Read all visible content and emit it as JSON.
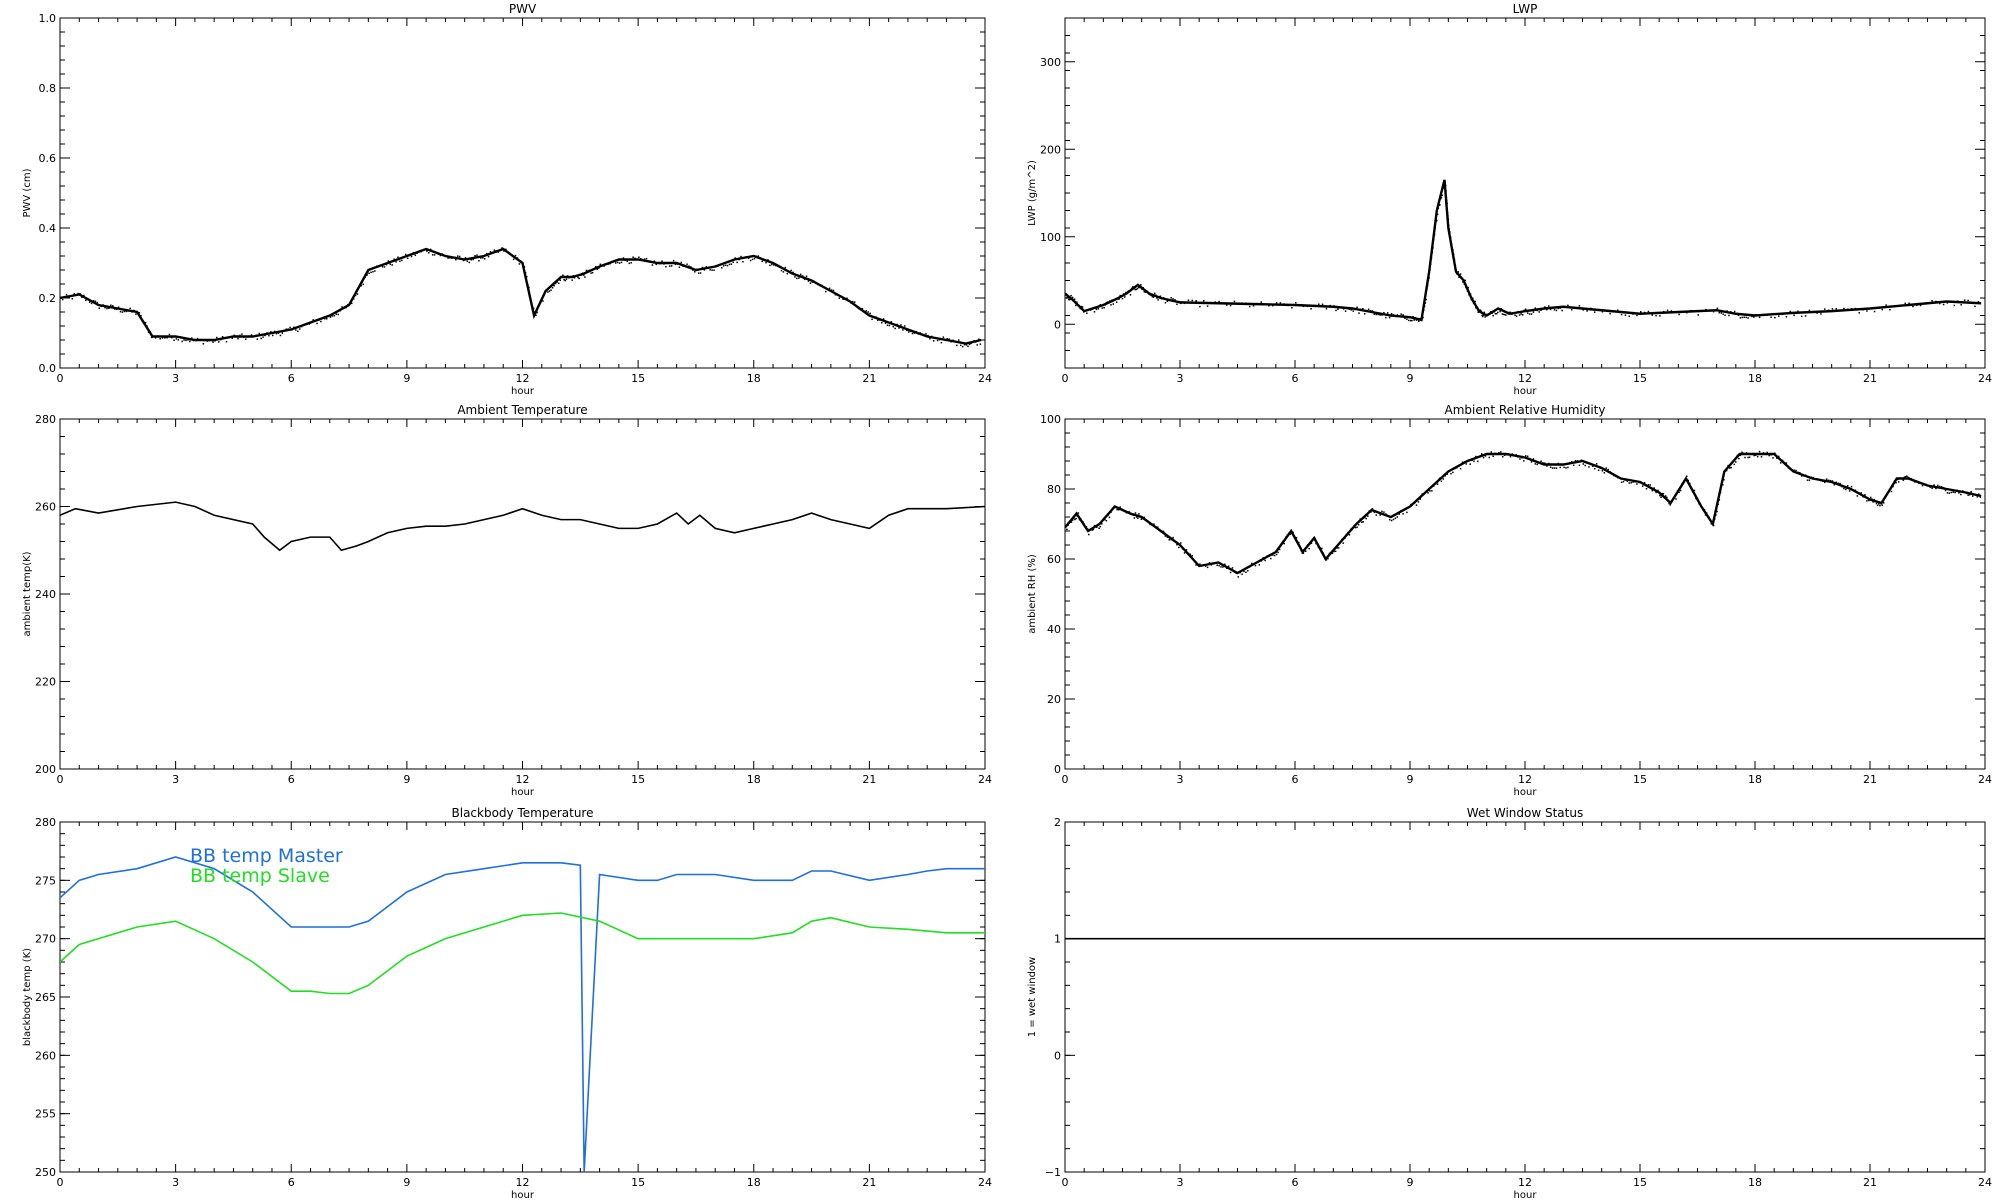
{
  "chart_data": [
    {
      "type": "scatter",
      "title": "PWV",
      "xlabel": "hour",
      "ylabel": "PWV (cm)",
      "xlim": [
        0,
        24
      ],
      "ylim": [
        0,
        1.0
      ],
      "xticks": [
        0,
        3,
        6,
        9,
        12,
        15,
        18,
        21,
        24
      ],
      "yticks": [
        0.0,
        0.2,
        0.4,
        0.6,
        0.8,
        1.0
      ],
      "ytick_labels": [
        "0.0",
        "0.2",
        "0.4",
        "0.6",
        "0.8",
        "1.0"
      ],
      "series": [
        {
          "color": "#000000",
          "style": "dots",
          "x": [
            0,
            0.5,
            1,
            1.5,
            2,
            2.4,
            3,
            3.5,
            4,
            4.5,
            5,
            5.5,
            6,
            6.5,
            7,
            7.5,
            8,
            8.5,
            9,
            9.5,
            10,
            10.5,
            11,
            11.5,
            12,
            12.3,
            12.6,
            13,
            13.3,
            13.6,
            14,
            14.5,
            15,
            15.5,
            16,
            16.5,
            17,
            17.5,
            18,
            18.5,
            19,
            19.5,
            20,
            20.5,
            21,
            21.5,
            22,
            22.5,
            23,
            23.5,
            23.9
          ],
          "y": [
            0.2,
            0.21,
            0.18,
            0.17,
            0.16,
            0.09,
            0.09,
            0.08,
            0.08,
            0.09,
            0.09,
            0.1,
            0.11,
            0.13,
            0.15,
            0.18,
            0.28,
            0.3,
            0.32,
            0.34,
            0.32,
            0.31,
            0.32,
            0.34,
            0.3,
            0.15,
            0.22,
            0.26,
            0.26,
            0.27,
            0.29,
            0.31,
            0.31,
            0.3,
            0.3,
            0.28,
            0.29,
            0.31,
            0.32,
            0.3,
            0.27,
            0.25,
            0.22,
            0.19,
            0.15,
            0.13,
            0.11,
            0.09,
            0.08,
            0.07,
            0.08
          ]
        }
      ]
    },
    {
      "type": "scatter",
      "title": "LWP",
      "xlabel": "hour",
      "ylabel": "LWP (g/m^2)",
      "xlim": [
        0,
        24
      ],
      "ylim": [
        -50,
        350
      ],
      "xticks": [
        0,
        3,
        6,
        9,
        12,
        15,
        18,
        21,
        24
      ],
      "yticks": [
        0,
        100,
        200,
        300
      ],
      "ytick_labels": [
        "0",
        "100",
        "200",
        "300"
      ],
      "series": [
        {
          "color": "#000000",
          "style": "dots",
          "x": [
            0,
            0.2,
            0.5,
            1,
            1.3,
            1.6,
            1.9,
            2.2,
            2.5,
            3,
            4,
            5,
            6,
            7,
            7.5,
            8,
            8.5,
            9,
            9.3,
            9.5,
            9.7,
            9.9,
            10,
            10.2,
            10.4,
            10.6,
            10.8,
            11,
            11.3,
            11.6,
            12,
            12.5,
            13,
            14,
            15,
            16,
            17,
            17.5,
            18,
            19,
            20,
            21,
            22,
            23,
            23.9
          ],
          "y": [
            35,
            28,
            15,
            22,
            28,
            35,
            45,
            35,
            30,
            25,
            24,
            23,
            22,
            20,
            18,
            14,
            10,
            8,
            5,
            60,
            130,
            165,
            110,
            60,
            50,
            30,
            15,
            10,
            18,
            12,
            15,
            18,
            20,
            16,
            12,
            14,
            16,
            12,
            10,
            13,
            15,
            18,
            22,
            26,
            24
          ]
        }
      ]
    },
    {
      "type": "line",
      "title": "Ambient Temperature",
      "xlabel": "hour",
      "ylabel": "ambient temp(K)",
      "xlim": [
        0,
        24
      ],
      "ylim": [
        200,
        280
      ],
      "xticks": [
        0,
        3,
        6,
        9,
        12,
        15,
        18,
        21,
        24
      ],
      "yticks": [
        200,
        220,
        240,
        260,
        280
      ],
      "ytick_labels": [
        "200",
        "220",
        "240",
        "260",
        "280"
      ],
      "series": [
        {
          "color": "#000000",
          "x": [
            0,
            0.4,
            1,
            2,
            3,
            3.5,
            4,
            5,
            5.3,
            5.7,
            6,
            6.5,
            7,
            7.3,
            7.7,
            8,
            8.5,
            9,
            9.5,
            10,
            10.5,
            11,
            11.5,
            12,
            12.5,
            13,
            13.5,
            14,
            14.5,
            15,
            15.5,
            16,
            16.3,
            16.6,
            17,
            17.5,
            18,
            18.5,
            19,
            19.5,
            20,
            20.5,
            21,
            21.5,
            22,
            23,
            24
          ],
          "y": [
            258,
            259.5,
            258.5,
            260,
            261,
            260,
            258,
            256,
            253,
            250,
            252,
            253,
            253,
            250,
            251,
            252,
            254,
            255,
            255.5,
            255.5,
            256,
            257,
            258,
            259.5,
            258,
            257,
            257,
            256,
            255,
            255,
            256,
            258.5,
            256,
            258,
            255,
            254,
            255,
            256,
            257,
            258.5,
            257,
            256,
            255,
            258,
            259.5,
            259.5,
            260
          ]
        }
      ]
    },
    {
      "type": "scatter",
      "title": "Ambient Relative Humidity",
      "xlabel": "hour",
      "ylabel": "ambient RH (%)",
      "xlim": [
        0,
        24
      ],
      "ylim": [
        0,
        100
      ],
      "xticks": [
        0,
        3,
        6,
        9,
        12,
        15,
        18,
        21,
        24
      ],
      "yticks": [
        0,
        20,
        40,
        60,
        80,
        100
      ],
      "ytick_labels": [
        "0",
        "20",
        "40",
        "60",
        "80",
        "100"
      ],
      "series": [
        {
          "color": "#000000",
          "style": "dots",
          "x": [
            0,
            0.3,
            0.6,
            0.9,
            1.3,
            1.7,
            2,
            2.5,
            3,
            3.5,
            4,
            4.5,
            5,
            5.5,
            5.9,
            6.2,
            6.5,
            6.8,
            7.2,
            7.6,
            8,
            8.5,
            9,
            9.5,
            10,
            10.5,
            11,
            11.5,
            12,
            12.5,
            13,
            13.5,
            14,
            14.5,
            15,
            15.5,
            15.8,
            16.2,
            16.6,
            16.9,
            17.2,
            17.6,
            18,
            18.5,
            19,
            19.5,
            20,
            20.5,
            21,
            21.3,
            21.7,
            22,
            22.5,
            23,
            23.5,
            23.9
          ],
          "y": [
            69,
            73,
            68,
            70,
            75,
            73,
            72,
            68,
            64,
            58,
            59,
            56,
            59,
            62,
            68,
            62,
            66,
            60,
            65,
            70,
            74,
            72,
            75,
            80,
            85,
            88,
            90,
            90,
            89,
            87,
            87,
            88,
            86,
            83,
            82,
            79,
            76,
            83,
            75,
            70,
            85,
            90,
            90,
            90,
            85,
            83,
            82,
            80,
            77,
            76,
            83,
            83,
            81,
            80,
            79,
            78
          ]
        }
      ]
    },
    {
      "type": "line",
      "title": "Blackbody Temperature",
      "xlabel": "hour",
      "ylabel": "blackbody temp (K)",
      "xlim": [
        0,
        24
      ],
      "ylim": [
        250,
        280
      ],
      "xticks": [
        0,
        3,
        6,
        9,
        12,
        15,
        18,
        21,
        24
      ],
      "yticks": [
        250,
        255,
        260,
        265,
        270,
        275,
        280
      ],
      "ytick_labels": [
        "250",
        "255",
        "260",
        "265",
        "270",
        "275",
        "280"
      ],
      "legend": "top-left",
      "series": [
        {
          "name": "BB temp Master",
          "color": "#1f6fdc",
          "x": [
            0,
            0.5,
            1,
            2,
            3,
            4,
            5,
            6,
            6.5,
            7,
            7.5,
            8,
            9,
            10,
            11,
            12,
            13,
            13.5,
            13.6,
            14,
            15,
            15.5,
            16,
            17,
            18,
            19,
            19.5,
            20,
            21,
            22,
            22.5,
            23,
            24
          ],
          "y": [
            273.5,
            275,
            275.5,
            276,
            277,
            276,
            274,
            271,
            271,
            271,
            271,
            271.5,
            274,
            275.5,
            276,
            276.5,
            276.5,
            276.3,
            250,
            275.5,
            275,
            275,
            275.5,
            275.5,
            275,
            275,
            275.8,
            275.8,
            275,
            275.5,
            275.8,
            276,
            276
          ]
        },
        {
          "name": "BB temp Slave",
          "color": "#22dd22",
          "x": [
            0,
            0.5,
            1,
            2,
            3,
            4,
            5,
            6,
            6.5,
            7,
            7.5,
            8,
            9,
            10,
            11,
            12,
            13,
            14,
            15,
            15.5,
            16,
            17,
            18,
            19,
            19.5,
            20,
            21,
            22,
            23,
            24
          ],
          "y": [
            268,
            269.5,
            270,
            271,
            271.5,
            270,
            268,
            265.5,
            265.5,
            265.3,
            265.3,
            266,
            268.5,
            270,
            271,
            272,
            272.2,
            271.5,
            270,
            270,
            270,
            270,
            270,
            270.5,
            271.5,
            271.8,
            271,
            270.8,
            270.5,
            270.5
          ]
        }
      ]
    },
    {
      "type": "line",
      "title": "Wet Window Status",
      "xlabel": "hour",
      "ylabel": "1 = wet window",
      "xlim": [
        0,
        24
      ],
      "ylim": [
        -1,
        2
      ],
      "xticks": [
        0,
        3,
        6,
        9,
        12,
        15,
        18,
        21,
        24
      ],
      "yticks": [
        -1,
        0,
        1,
        2
      ],
      "ytick_labels": [
        "−1",
        "0",
        "1",
        "2"
      ],
      "series": [
        {
          "color": "#000000",
          "x": [
            0,
            24
          ],
          "y": [
            1,
            1
          ]
        }
      ]
    }
  ]
}
